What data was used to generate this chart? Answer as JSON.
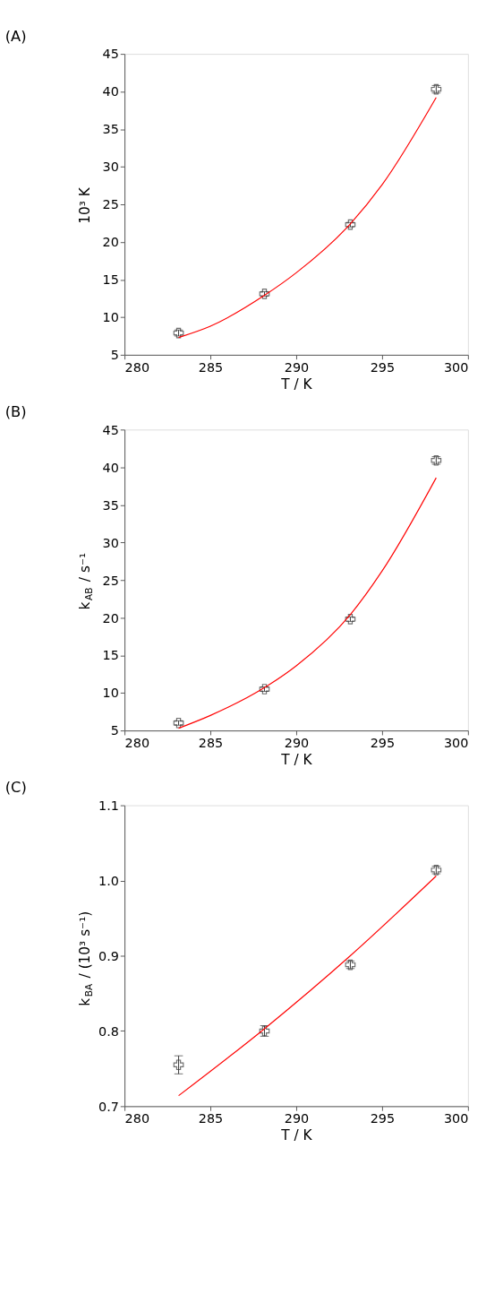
{
  "chart_data": [
    {
      "type": "scatter",
      "title": "(A)",
      "xlabel": "T / K",
      "ylabel": "10³ K",
      "xlim": [
        280,
        300
      ],
      "xticks": [
        280,
        285,
        290,
        295,
        300
      ],
      "ylim": [
        5,
        45
      ],
      "yticks": [
        5,
        10,
        15,
        20,
        25,
        30,
        35,
        40,
        45
      ],
      "grid": false,
      "marker": "cross",
      "x": [
        283.15,
        288.15,
        293.15,
        298.15
      ],
      "series": [
        {
          "color": "#333333",
          "values": [
            7.9,
            13.1,
            22.3,
            40.3
          ],
          "errors": [
            0.4,
            0.3,
            0.3,
            0.5
          ]
        },
        {
          "type": "line",
          "color": "#ff0000",
          "marker": "none",
          "line_style": "solid",
          "x": [
            283.15,
            285,
            288.15,
            290,
            293.15,
            295,
            298.15
          ],
          "values": [
            7.3,
            8.8,
            12.9,
            15.9,
            22.4,
            27.6,
            39.2
          ]
        }
      ]
    },
    {
      "type": "scatter",
      "title": "(B)",
      "xlabel": "T / K",
      "ylabel": "k$_{AB}$ / s⁻¹",
      "xlim": [
        280,
        300
      ],
      "xticks": [
        280,
        285,
        290,
        295,
        300
      ],
      "ylim": [
        5,
        45
      ],
      "yticks": [
        5,
        10,
        15,
        20,
        25,
        30,
        35,
        40,
        45
      ],
      "grid": false,
      "marker": "cross",
      "x": [
        283.15,
        288.15,
        293.15,
        298.15
      ],
      "series": [
        {
          "color": "#333333",
          "values": [
            6.0,
            10.5,
            19.8,
            40.9
          ],
          "errors": [
            0.3,
            0.3,
            0.3,
            0.5
          ]
        },
        {
          "type": "line",
          "color": "#ff0000",
          "marker": "none",
          "line_style": "solid",
          "x": [
            283.15,
            285,
            288.15,
            290,
            293.15,
            295,
            298.15
          ],
          "values": [
            5.3,
            7.0,
            10.7,
            13.6,
            20.4,
            26.2,
            38.6
          ]
        }
      ]
    },
    {
      "type": "scatter",
      "title": "(C)",
      "xlabel": "T / K",
      "ylabel": "k$_{BA}$ / (10³ s⁻¹)",
      "xlim": [
        280,
        300
      ],
      "xticks": [
        280,
        285,
        290,
        295,
        300
      ],
      "ylim": [
        0.7,
        1.1
      ],
      "yticks": [
        0.7,
        0.8,
        0.9,
        {
          "value": 1.0,
          "label": "1.0"
        },
        1.1
      ],
      "grid": false,
      "marker": "cross",
      "x": [
        283.15,
        288.15,
        293.15,
        298.15
      ],
      "series": [
        {
          "color": "#333333",
          "values": [
            0.755,
            0.8,
            0.888,
            1.014
          ],
          "errors": [
            0.012,
            0.007,
            0.005,
            0.005
          ]
        },
        {
          "type": "line",
          "color": "#ff0000",
          "marker": "none",
          "line_style": "solid",
          "x": [
            283.15,
            288.15,
            293.15,
            298.15
          ],
          "values": [
            0.714,
            0.803,
            0.9,
            1.006
          ]
        }
      ]
    }
  ]
}
